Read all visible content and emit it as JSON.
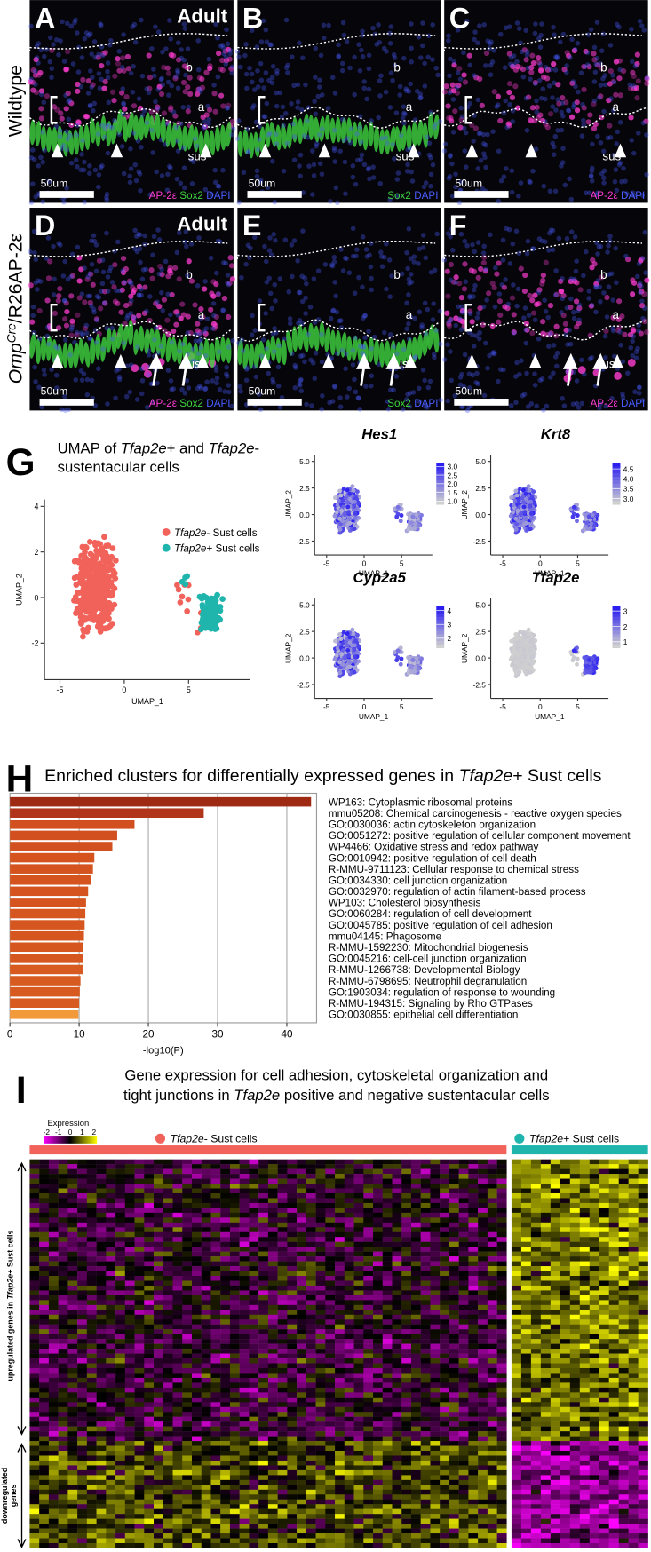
{
  "micrographs": {
    "rows": [
      {
        "label": [
          {
            "text": "Wildtype"
          }
        ],
        "panels": [
          {
            "letter": "A",
            "tag": "Adult",
            "marks": [
              "b",
              "a",
              "sus"
            ],
            "scale_bar": "50um",
            "stains": [
              {
                "text": "AP-2ε",
                "color": "#ff3dd1"
              },
              {
                "text": "Sox2",
                "color": "#3fd43f"
              },
              {
                "text": "DAPI",
                "color": "#4a5cff"
              }
            ]
          },
          {
            "letter": "B",
            "marks": [
              "b",
              "a",
              "sus"
            ],
            "scale_bar": "50um",
            "stains": [
              {
                "text": "Sox2",
                "color": "#3fd43f"
              },
              {
                "text": "DAPI",
                "color": "#4a5cff"
              }
            ]
          },
          {
            "letter": "C",
            "marks": [
              "b",
              "a",
              "sus"
            ],
            "scale_bar": "50um",
            "stains": [
              {
                "text": "AP-2ε",
                "color": "#ff3dd1"
              },
              {
                "text": "DAPI",
                "color": "#4a5cff"
              }
            ]
          }
        ]
      },
      {
        "label": [
          {
            "text": "Omp",
            "italic": true
          },
          {
            "text": "Cre",
            "italic": true,
            "sup": true
          },
          {
            "text": "/R26AP-2ε"
          }
        ],
        "panels": [
          {
            "letter": "D",
            "tag": "Adult",
            "marks": [
              "b",
              "a",
              "us"
            ],
            "scale_bar": "50um",
            "stains": [
              {
                "text": "AP-2ε",
                "color": "#ff3dd1"
              },
              {
                "text": "Sox2",
                "color": "#3fd43f"
              },
              {
                "text": "DAPI",
                "color": "#4a5cff"
              }
            ]
          },
          {
            "letter": "E",
            "marks": [
              "b",
              "a",
              "us"
            ],
            "scale_bar": "50um",
            "stains": [
              {
                "text": "Sox2",
                "color": "#3fd43f"
              },
              {
                "text": "DAPI",
                "color": "#4a5cff"
              }
            ]
          },
          {
            "letter": "F",
            "marks": [
              "b",
              "a",
              "us"
            ],
            "scale_bar": "50um",
            "stains": [
              {
                "text": "AP-2ε",
                "color": "#ff3dd1"
              },
              {
                "text": "DAPI",
                "color": "#4a5cff"
              }
            ]
          }
        ]
      }
    ]
  },
  "umap": {
    "letter": "G",
    "title": [
      [
        {
          "text": "UMAP of "
        },
        {
          "text": "Tfap2e",
          "italic": true
        },
        {
          "text": "+ and "
        },
        {
          "text": "Tfap2e",
          "italic": true
        },
        {
          "text": "-"
        }
      ],
      [
        {
          "text": "sustentacular cells"
        }
      ]
    ],
    "xlabel": "UMAP_1",
    "ylabel": "UMAP_2",
    "xlim": [
      -6.2,
      9.8
    ],
    "ylim": [
      -3.6,
      4.3
    ],
    "xticks": [
      -5,
      0,
      5
    ],
    "yticks": [
      -2,
      0,
      2,
      4
    ],
    "legend": [
      {
        "name": [
          {
            "text": "Tfap2e",
            "italic": true
          },
          {
            "text": "- Sust cells"
          }
        ],
        "color": "#f0625a"
      },
      {
        "name": [
          {
            "text": "Tfap2e",
            "italic": true
          },
          {
            "text": "+ Sust cells"
          }
        ],
        "color": "#1fb5ad"
      }
    ]
  },
  "features": {
    "xlabel": "UMAP_1",
    "ylabel": "UMAP_2",
    "xlim": [
      -6.6,
      9.1
    ],
    "ylim": [
      -3.8,
      5.6
    ],
    "xticks": [
      -5,
      0,
      5
    ],
    "yticks": [
      -2.5,
      {
        "value": 0,
        "label": "0.0"
      },
      2.5,
      {
        "value": 5,
        "label": "5.0"
      }
    ],
    "low_color": "#d0d0d0",
    "high_color": "#2a1ef0",
    "plots": [
      {
        "gene": "Hes1",
        "scale_lim": [
          0.8,
          3.2
        ],
        "scale_ticks": [
          {
            "value": 1,
            "label": "1.0"
          },
          1.5,
          {
            "value": 2,
            "label": "2.0"
          },
          2.5,
          {
            "value": 3,
            "label": "3.0"
          }
        ]
      },
      {
        "gene": "Krt8",
        "scale_lim": [
          2.7,
          4.8
        ],
        "scale_ticks": [
          {
            "value": 3,
            "label": "3.0"
          },
          3.5,
          {
            "value": 4,
            "label": "4.0"
          },
          4.5
        ]
      },
      {
        "gene": "Cyp2a5",
        "scale_lim": [
          1.3,
          4.3
        ],
        "scale_ticks": [
          2,
          3,
          4
        ]
      },
      {
        "gene": "Tfap2e",
        "scale_lim": [
          0.6,
          3.3
        ],
        "scale_ticks": [
          1,
          2,
          3
        ]
      }
    ]
  },
  "enrichment": {
    "letter": "H",
    "title": [
      {
        "text": "Enriched clusters for differentially expressed genes in "
      },
      {
        "text": "Tfap2e",
        "italic": true
      },
      {
        "text": "+ Sust cells"
      }
    ],
    "categories": [
      "WP163: Cytoplasmic ribosomal proteins",
      "mmu05208: Chemical carcinogenesis - reactive oxygen species",
      "GO:0030036: actin cytoskeleton organization",
      "GO:0051272: positive regulation of cellular component movement",
      "WP4466: Oxidative stress and redox pathway",
      "GO:0010942: positive regulation of cell death",
      "R-MMU-9711123: Cellular response to chemical stress",
      "GO:0034330: cell junction organization",
      "GO:0032970: regulation of actin filament-based process",
      "WP103: Cholesterol biosynthesis",
      "GO:0060284: regulation of cell development",
      "GO:0045785: positive regulation of cell adhesion",
      "mmu04145: Phagosome",
      "R-MMU-1592230: Mitochondrial biogenesis",
      "GO:0045216: cell-cell junction organization",
      "R-MMU-1266738: Developmental Biology",
      "R-MMU-6798695: Neutrophil degranulation",
      "GO:1903034: regulation of response to wounding",
      "R-MMU-194315: Signaling by Rho GTPases",
      "GO:0030855: epithelial cell differentiation"
    ],
    "values": [
      43.5,
      28,
      18,
      15.5,
      14.8,
      12.2,
      12,
      11.7,
      11.3,
      11,
      10.9,
      10.8,
      10.7,
      10.6,
      10.6,
      10.5,
      10.2,
      10.1,
      10,
      9.9
    ],
    "colors": [
      "#9e2a14",
      "#b0351a",
      "#d2501f",
      "#d2501f",
      "#d2501f",
      "#d4531f",
      "#d4531f",
      "#d4531f",
      "#d4531f",
      "#d4531f",
      "#d5561f",
      "#d5561f",
      "#d5561f",
      "#d5561f",
      "#d5561f",
      "#d75a20",
      "#d75a20",
      "#d75a20",
      "#d75a20",
      "#f29a3a"
    ],
    "xlim": [
      0,
      44.3
    ],
    "xticks": [
      0,
      10,
      20,
      30,
      40
    ],
    "xlabel": "-log10(P)"
  },
  "heatmap": {
    "letter": "I",
    "title": [
      [
        {
          "text": "Gene expression for cell adhesion, cytoskeletal organization and"
        }
      ],
      [
        {
          "text": "tight junctions in "
        },
        {
          "text": "Tfap2e",
          "italic": true
        },
        {
          "text": " positive and negative sustentacular cells"
        }
      ]
    ],
    "legend_title": "Expression",
    "legend_ticks": [
      -2,
      -1,
      0,
      1,
      2
    ],
    "groups": [
      {
        "name": [
          {
            "text": "Tfap2e",
            "italic": true
          },
          {
            "text": "- Sust cells"
          }
        ],
        "color": "#f0625a"
      },
      {
        "name": [
          {
            "text": "Tfap2e",
            "italic": true
          },
          {
            "text": "+ Sust cells"
          }
        ],
        "color": "#1fb5ad"
      }
    ],
    "up_label": [
      {
        "text": "upregulated genes in "
      },
      {
        "text": "Tfap2e",
        "italic": true
      },
      {
        "text": "+ Sust cells"
      }
    ],
    "down_label": [
      "downregulated",
      "genes"
    ]
  }
}
